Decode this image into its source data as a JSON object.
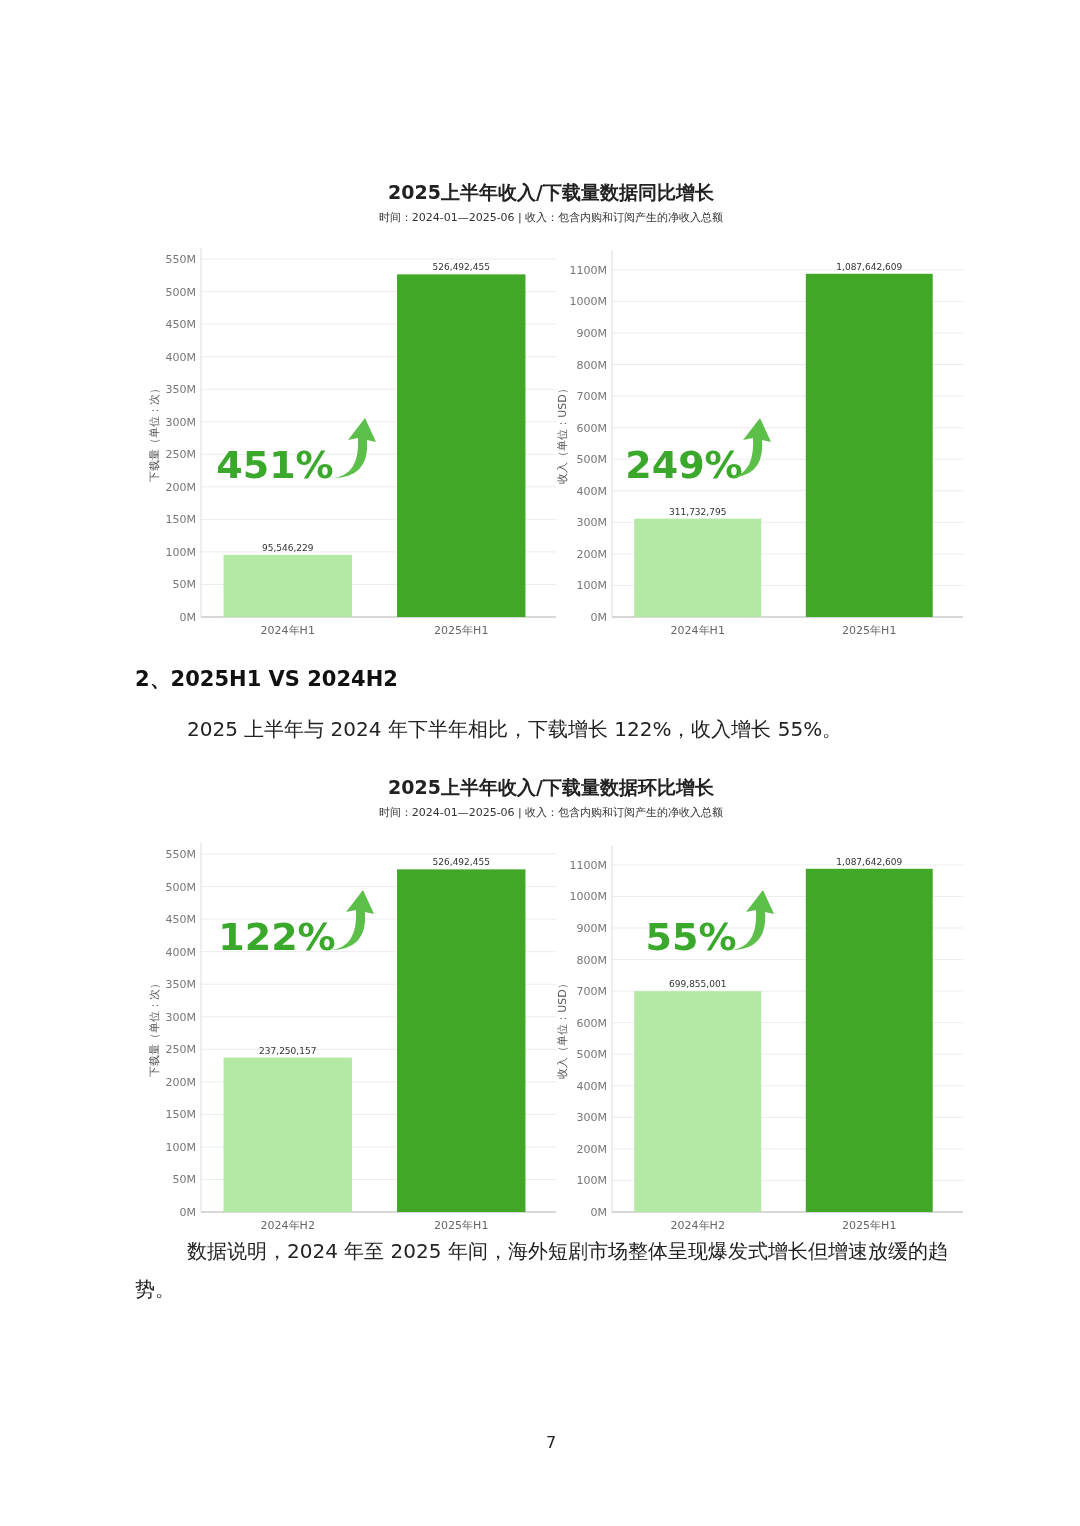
{
  "chart_data": [
    {
      "type": "bar",
      "title": "2025上半年收入/下载量数据同比增长",
      "subtitle": "时间：2024-01—2025-06 | 收入：包含内购和订阅产生的净收入总额",
      "ylabel": "下载量（单位：次）",
      "categories": [
        "2024年H1",
        "2025年H1"
      ],
      "values": [
        95546229,
        526492455
      ],
      "colors": [
        "#b3e9a5",
        "#40a727"
      ],
      "value_labels": [
        "95,546,229",
        "526,492,455"
      ],
      "grid": "y",
      "ylim": [
        0,
        567000000
      ],
      "yticks": [
        {
          "value": 0,
          "label": "0M"
        },
        {
          "value": 50000000,
          "label": "50M"
        },
        {
          "value": 100000000,
          "label": "100M"
        },
        {
          "value": 150000000,
          "label": "150M"
        },
        {
          "value": 200000000,
          "label": "200M"
        },
        {
          "value": 250000000,
          "label": "250M"
        },
        {
          "value": 300000000,
          "label": "300M"
        },
        {
          "value": 350000000,
          "label": "350M"
        },
        {
          "value": 400000000,
          "label": "400M"
        },
        {
          "value": 450000000,
          "label": "450M"
        },
        {
          "value": 500000000,
          "label": "500M"
        },
        {
          "value": 550000000,
          "label": "550M"
        }
      ],
      "annotations": [
        "451%"
      ]
    },
    {
      "type": "bar",
      "ylabel": "收入（单位：USD）",
      "categories": [
        "2024年H1",
        "2025年H1"
      ],
      "values": [
        311732795,
        1087642609
      ],
      "colors": [
        "#b3e9a5",
        "#40a727"
      ],
      "value_labels": [
        "311,732,795",
        "1,087,642,609"
      ],
      "grid": "y",
      "ylim": [
        0,
        1163000000
      ],
      "yticks": [
        {
          "value": 0,
          "label": "0M"
        },
        {
          "value": 100000000,
          "label": "100M"
        },
        {
          "value": 200000000,
          "label": "200M"
        },
        {
          "value": 300000000,
          "label": "300M"
        },
        {
          "value": 400000000,
          "label": "400M"
        },
        {
          "value": 500000000,
          "label": "500M"
        },
        {
          "value": 600000000,
          "label": "600M"
        },
        {
          "value": 700000000,
          "label": "700M"
        },
        {
          "value": 800000000,
          "label": "800M"
        },
        {
          "value": 900000000,
          "label": "900M"
        },
        {
          "value": 1000000000,
          "label": "1000M"
        },
        {
          "value": 1100000000,
          "label": "1100M"
        }
      ],
      "annotations": [
        "249%",
        "2、2025H1 VS 2024H2",
        "2025 上半年与 2024 年下半年相比，下载增长 122%，收入增长 55%。"
      ]
    },
    {
      "type": "bar",
      "title": "2025上半年收入/下载量数据环比增长",
      "subtitle": "时间：2024-01—2025-06 | 收入：包含内购和订阅产生的净收入总额",
      "ylabel": "下载量（单位：次）",
      "categories": [
        "2024年H2",
        "2025年H1"
      ],
      "values": [
        237250157,
        526492455
      ],
      "colors": [
        "#b3e9a5",
        "#40a727"
      ],
      "value_labels": [
        "237,250,157",
        "526,492,455"
      ],
      "grid": "y",
      "ylim": [
        0,
        567000000
      ],
      "yticks": [
        {
          "value": 0,
          "label": "0M"
        },
        {
          "value": 50000000,
          "label": "50M"
        },
        {
          "value": 100000000,
          "label": "100M"
        },
        {
          "value": 150000000,
          "label": "150M"
        },
        {
          "value": 200000000,
          "label": "200M"
        },
        {
          "value": 250000000,
          "label": "250M"
        },
        {
          "value": 300000000,
          "label": "300M"
        },
        {
          "value": 350000000,
          "label": "350M"
        },
        {
          "value": 400000000,
          "label": "400M"
        },
        {
          "value": 450000000,
          "label": "450M"
        },
        {
          "value": 500000000,
          "label": "500M"
        },
        {
          "value": 550000000,
          "label": "550M"
        }
      ],
      "annotations": [
        "122%"
      ]
    },
    {
      "type": "bar",
      "ylabel": "收入（单位：USD）",
      "categories": [
        "2024年H2",
        "2025年H1"
      ],
      "values": [
        699855001,
        1087642609
      ],
      "colors": [
        "#b3e9a5",
        "#40a727"
      ],
      "value_labels": [
        "699,855,001",
        "1,087,642,609"
      ],
      "grid": "y",
      "ylim": [
        0,
        1163000000
      ],
      "yticks": [
        {
          "value": 0,
          "label": "0M"
        },
        {
          "value": 100000000,
          "label": "100M"
        },
        {
          "value": 200000000,
          "label": "200M"
        },
        {
          "value": 300000000,
          "label": "300M"
        },
        {
          "value": 400000000,
          "label": "400M"
        },
        {
          "value": 500000000,
          "label": "500M"
        },
        {
          "value": 600000000,
          "label": "600M"
        },
        {
          "value": 700000000,
          "label": "700M"
        },
        {
          "value": 800000000,
          "label": "800M"
        },
        {
          "value": 900000000,
          "label": "900M"
        },
        {
          "value": 1000000000,
          "label": "1000M"
        },
        {
          "value": 1100000000,
          "label": "1100M"
        }
      ],
      "annotations": [
        "55%",
        "数据说明，2024 年至 2025 年间，海外短剧市场整体呈现爆发式增长但增速放缓的趋势。",
        "7"
      ]
    }
  ]
}
